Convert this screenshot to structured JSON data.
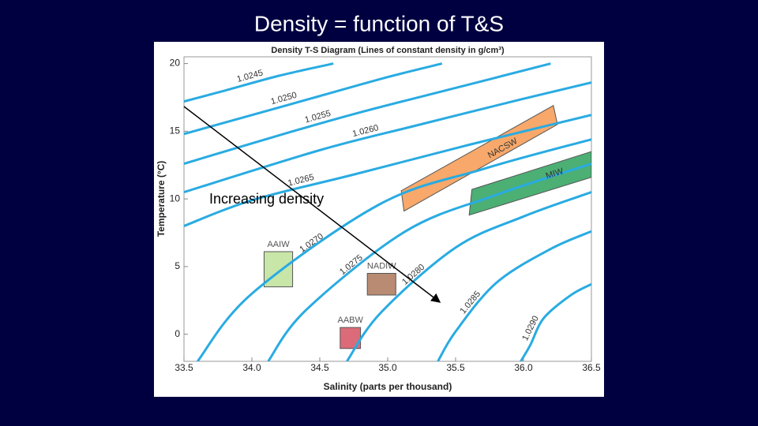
{
  "title": "Density = function of T&S",
  "chart_data": {
    "type": "line",
    "title": "Density T-S Diagram (Lines of constant density in g/cm³)",
    "x_label": "Salinity (parts per thousand)",
    "y_label": "Temperature (°C)",
    "annotation": "Increasing density",
    "xlim": [
      33.5,
      36.5
    ],
    "ylim": [
      -2,
      20.5
    ],
    "xticks": [
      33.5,
      {
        "value": 34,
        "label": "34.0"
      },
      34.5,
      {
        "value": 35,
        "label": "35.0"
      },
      35.5,
      {
        "value": 36,
        "label": "36.0"
      },
      36.5
    ],
    "yticks": [
      0,
      5,
      10,
      15,
      20
    ],
    "series": [
      {
        "name": "1.0245",
        "color": "#29abe2",
        "x": [
          33.5,
          33.8,
          34.2,
          34.6
        ],
        "values": [
          17.2,
          18.0,
          19.1,
          20
        ]
      },
      {
        "name": "1.0250",
        "color": "#29abe2",
        "x": [
          33.5,
          34.0,
          34.5,
          35.0,
          35.4
        ],
        "values": [
          14.8,
          16.2,
          17.6,
          19.0,
          20
        ]
      },
      {
        "name": "1.0255",
        "color": "#29abe2",
        "x": [
          33.5,
          34.2,
          34.8,
          35.5,
          36.2
        ],
        "values": [
          12.6,
          14.7,
          16.4,
          18.2,
          20
        ]
      },
      {
        "name": "1.0260",
        "color": "#29abe2",
        "x": [
          33.5,
          34.5,
          35.2,
          36.0,
          36.5
        ],
        "values": [
          10.5,
          13.6,
          15.4,
          17.4,
          18.6
        ]
      },
      {
        "name": "1.0265",
        "color": "#29abe2",
        "x": [
          33.5,
          34.0,
          34.75,
          35.6,
          36.5
        ],
        "values": [
          8.0,
          9.9,
          11.8,
          14.0,
          16.2
        ]
      },
      {
        "name": "1.0270",
        "color": "#29abe2",
        "x": [
          33.6,
          34.0,
          34.94,
          35.7,
          36.5
        ],
        "values": [
          -2,
          3.0,
          9.6,
          12.2,
          14.4
        ]
      },
      {
        "name": "1.0275",
        "color": "#29abe2",
        "x": [
          34.12,
          34.4,
          35.13,
          35.8,
          36.5
        ],
        "values": [
          -2,
          1.8,
          7.6,
          10.3,
          12.6
        ]
      },
      {
        "name": "1.0280",
        "color": "#29abe2",
        "x": [
          34.7,
          34.95,
          35.5,
          36.0,
          36.5
        ],
        "values": [
          -2,
          1.6,
          6.4,
          8.7,
          10.5
        ]
      },
      {
        "name": "1.0285",
        "color": "#29abe2",
        "x": [
          35.37,
          35.5,
          35.8,
          36.2,
          36.5
        ],
        "values": [
          -2,
          0.2,
          3.8,
          6.3,
          7.6
        ]
      },
      {
        "name": "1.0290",
        "color": "#29abe2",
        "x": [
          35.98,
          36.05,
          36.15,
          36.35,
          36.5
        ],
        "values": [
          -2,
          -0.8,
          1.2,
          2.9,
          3.7
        ]
      }
    ],
    "regions": [
      {
        "name": "AAIW",
        "color": "#c8e6a8",
        "x": [
          34.09,
          34.3,
          34.3,
          34.09
        ],
        "y": [
          6.1,
          6.1,
          3.5,
          3.5
        ]
      },
      {
        "name": "NADIW",
        "color": "#b88b72",
        "x": [
          34.85,
          35.06,
          35.06,
          34.85
        ],
        "y": [
          4.5,
          4.5,
          2.9,
          2.9
        ]
      },
      {
        "name": "AABW",
        "color": "#dc6b7a",
        "x": [
          34.65,
          34.8,
          34.8,
          34.65
        ],
        "y": [
          0.5,
          0.5,
          -1.05,
          -1.05
        ]
      },
      {
        "name": "NACSW",
        "color": "#f7a86a",
        "x": [
          35.1,
          36.22,
          36.25,
          35.12
        ],
        "y": [
          10.6,
          16.9,
          15.5,
          9.1
        ]
      },
      {
        "name": "MIW",
        "color": "#4caf74",
        "x": [
          35.62,
          36.5,
          36.5,
          35.6
        ],
        "y": [
          10.7,
          13.5,
          11.6,
          8.8
        ]
      }
    ]
  }
}
